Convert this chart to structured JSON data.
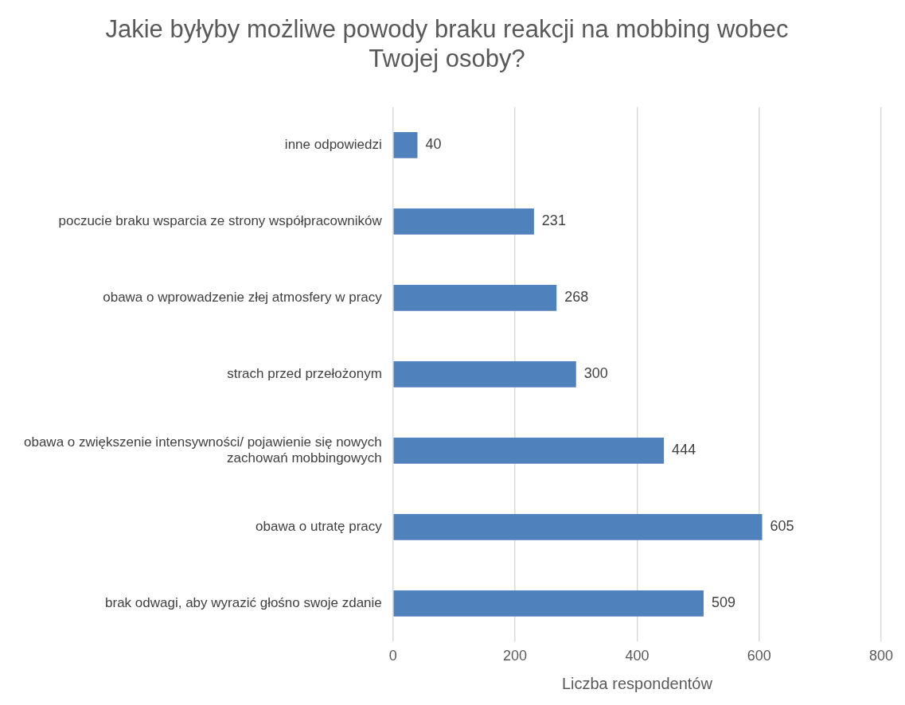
{
  "chart_data": {
    "type": "bar",
    "orientation": "horizontal",
    "title": "Jakie byłyby możliwe powody braku reakcji na mobbing wobec Twojej osoby?",
    "xlabel": "Liczba respondentów",
    "categories": [
      "inne odpowiedzi",
      "poczucie braku wsparcia ze strony współpracowników",
      "obawa o wprowadzenie złej atmosfery w pracy",
      "strach przed przełożonym",
      "obawa o zwiększenie intensywności/ pojawienie się nowych zachowań mobbingowych",
      "obawa o utratę pracy",
      "brak odwagi, aby wyrazić głośno swoje zdanie"
    ],
    "values": [
      40,
      231,
      268,
      300,
      444,
      605,
      509
    ],
    "color": "#4f81bd",
    "xlim": [
      0,
      800
    ],
    "xticks": [
      0,
      200,
      400,
      600,
      800
    ],
    "grid": "x",
    "data_labels": true
  }
}
